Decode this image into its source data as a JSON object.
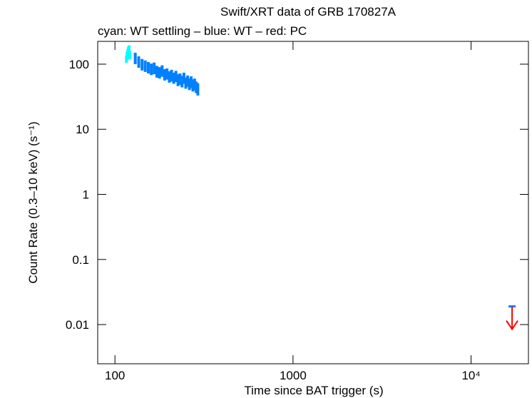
{
  "chart_data": {
    "type": "scatter",
    "title": "Swift/XRT data of GRB 170827A",
    "subtitle": "cyan: WT settling – blue: WT – red: PC",
    "x_label": "Time since BAT trigger (s)",
    "y_label": "Count Rate (0.3–10 keV) (s⁻¹)",
    "xlog": true,
    "ylog": true,
    "xlim": [
      80,
      21000
    ],
    "ylim": [
      0.0025,
      224
    ],
    "xticks": [
      100,
      1000,
      {
        "value": 10000,
        "label": "10⁴"
      }
    ],
    "yticks": [
      0.01,
      0.1,
      1,
      10,
      100
    ],
    "series": [
      {
        "color": "#00ffff",
        "x": [
          116,
          117,
          118,
          119,
          120,
          121
        ],
        "values": [
          120,
          135,
          150,
          165,
          170,
          140
        ],
        "errors": [
          15,
          20,
          20,
          20,
          25,
          20
        ]
      },
      {
        "color": "#0080ff",
        "x": [
          130,
          136,
          142,
          148,
          154,
          160,
          166,
          172,
          178,
          184,
          190,
          196,
          202,
          208,
          214,
          220,
          226,
          232,
          238,
          244,
          250,
          256,
          262,
          268,
          274,
          280,
          286,
          292
        ],
        "values": [
          125,
          110,
          100,
          95,
          90,
          85,
          88,
          78,
          75,
          80,
          70,
          72,
          65,
          68,
          62,
          66,
          58,
          60,
          55,
          62,
          52,
          56,
          50,
          54,
          48,
          50,
          45,
          42
        ],
        "errors": [
          25,
          22,
          20,
          19,
          18,
          17,
          18,
          16,
          15,
          16,
          14,
          14,
          13,
          14,
          12,
          13,
          12,
          12,
          11,
          12,
          10,
          11,
          10,
          11,
          10,
          10,
          9,
          9
        ]
      },
      {
        "color": "#ff0000",
        "upper_limit": true,
        "x": [
          17000
        ],
        "values": [
          0.019
        ]
      }
    ]
  }
}
